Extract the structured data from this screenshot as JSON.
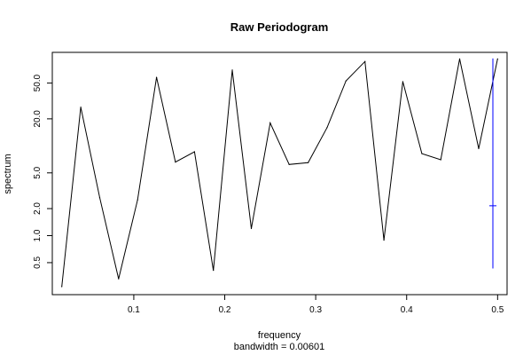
{
  "chart_data": {
    "type": "line",
    "title": "Raw Periodogram",
    "xlabel": "frequency",
    "subtitle": "bandwidth = 0.00601",
    "ylabel": "spectrum",
    "yscale": "log",
    "xlim": [
      0.0104,
      0.5104
    ],
    "ylim": [
      0.22,
      110
    ],
    "x_ticks": [
      {
        "value": 0.1,
        "label": "0.1"
      },
      {
        "value": 0.2,
        "label": "0.2"
      },
      {
        "value": 0.3,
        "label": "0.3"
      },
      {
        "value": 0.4,
        "label": "0.4"
      },
      {
        "value": 0.5,
        "label": "0.5"
      }
    ],
    "y_ticks": [
      {
        "value": 0.5,
        "label": "0.5"
      },
      {
        "value": 1.0,
        "label": "1.0"
      },
      {
        "value": 2.0,
        "label": "2.0"
      },
      {
        "value": 5.0,
        "label": "5.0"
      },
      {
        "value": 20.0,
        "label": "20.0"
      },
      {
        "value": 50.0,
        "label": "50.0"
      }
    ],
    "series": [
      {
        "color": "#000000",
        "x": [
          0.0208,
          0.0417,
          0.0625,
          0.0833,
          0.1042,
          0.125,
          0.1458,
          0.1667,
          0.1875,
          0.2083,
          0.2292,
          0.25,
          0.2708,
          0.2917,
          0.3125,
          0.3333,
          0.3542,
          0.375,
          0.3958,
          0.4167,
          0.4375,
          0.4583,
          0.4792,
          0.5
        ],
        "y": [
          0.27,
          27.0,
          2.65,
          0.33,
          2.5,
          58.0,
          6.6,
          8.6,
          0.41,
          70.0,
          1.2,
          18.0,
          6.2,
          6.5,
          16.0,
          53.0,
          87.0,
          0.89,
          52.0,
          8.2,
          7.0,
          93.0,
          9.3,
          93.0
        ]
      }
    ],
    "ci_bar": {
      "color": "#0000ff",
      "x": 0.4948,
      "center": 2.15,
      "lower": 0.43,
      "upper": 94.0
    },
    "grid": false,
    "legend": "none"
  }
}
